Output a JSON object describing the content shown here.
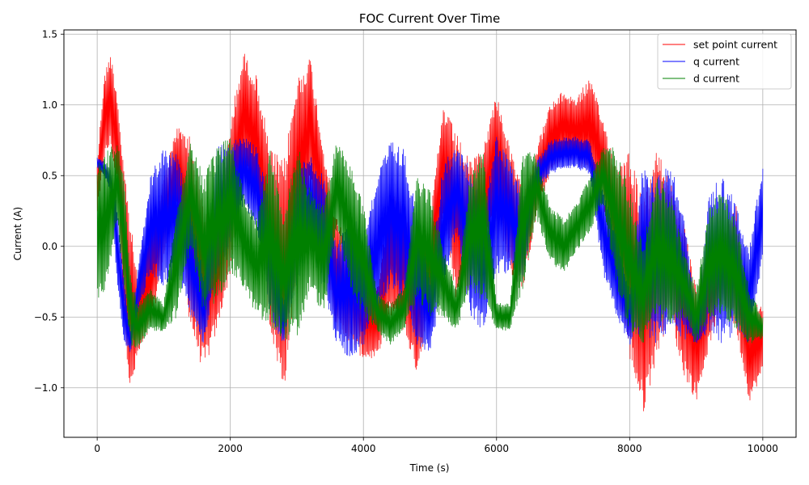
{
  "chart_data": {
    "type": "line",
    "title": "FOC Current Over Time",
    "xlabel": "Time (s)",
    "ylabel": "Current (A)",
    "xlim": [
      -500,
      10500
    ],
    "ylim": [
      -1.35,
      1.53
    ],
    "xticks": [
      0,
      2000,
      4000,
      6000,
      8000,
      10000
    ],
    "xtick_labels": [
      "0",
      "2000",
      "4000",
      "6000",
      "8000",
      "10000"
    ],
    "yticks": [
      -1.0,
      -0.5,
      0.0,
      0.5,
      1.0,
      1.5
    ],
    "ytick_labels": [
      "−1.0",
      "−0.5",
      "0.0",
      "0.5",
      "1.0",
      "1.5"
    ],
    "grid": true,
    "legend_position": "upper-right",
    "series": [
      {
        "name": "set point current",
        "color": "#ff0000",
        "envelope": {
          "x": [
            0,
            100,
            200,
            300,
            400,
            500,
            600,
            800,
            1000,
            1200,
            1400,
            1600,
            1800,
            2000,
            2200,
            2400,
            2600,
            2800,
            3000,
            3200,
            3400,
            3600,
            3800,
            4000,
            4200,
            4400,
            4600,
            4800,
            5000,
            5200,
            5400,
            5600,
            5800,
            6000,
            6200,
            6400,
            6600,
            6800,
            7000,
            7200,
            7400,
            7600,
            7800,
            8000,
            8200,
            8400,
            8600,
            8800,
            9000,
            9200,
            9400,
            9600,
            9800,
            10000
          ],
          "max": [
            0.6,
            1.2,
            1.38,
            1.1,
            0.6,
            0.2,
            -0.2,
            0.1,
            0.5,
            0.85,
            0.8,
            0.3,
            0.2,
            0.9,
            1.38,
            1.2,
            0.7,
            0.6,
            1.2,
            1.35,
            0.7,
            0.2,
            0.0,
            -0.2,
            -0.3,
            0.4,
            0.3,
            0.0,
            0.2,
            1.0,
            0.8,
            0.6,
            0.7,
            1.1,
            0.7,
            0.4,
            0.7,
            1.0,
            1.1,
            1.05,
            1.2,
            0.9,
            0.6,
            0.7,
            0.3,
            0.7,
            0.5,
            0.2,
            -0.3,
            0.0,
            0.1,
            0.3,
            -0.4,
            -0.4
          ],
          "min": [
            0.2,
            0.6,
            0.7,
            0.4,
            -0.5,
            -1.1,
            -0.8,
            -0.6,
            -0.1,
            0.3,
            -0.6,
            -0.9,
            -0.6,
            -0.2,
            0.5,
            0.3,
            -0.6,
            -1.05,
            -0.2,
            0.4,
            0.0,
            -0.6,
            -0.7,
            -0.8,
            -0.8,
            -0.5,
            -0.6,
            -0.9,
            -0.5,
            0.2,
            -0.4,
            -0.3,
            -0.1,
            0.3,
            -0.2,
            -0.3,
            0.2,
            0.5,
            0.6,
            0.6,
            0.5,
            0.3,
            -0.3,
            -0.8,
            -1.2,
            -0.8,
            -0.5,
            -0.9,
            -1.1,
            -0.7,
            -0.4,
            -0.6,
            -1.1,
            -0.9
          ]
        }
      },
      {
        "name": "q current",
        "color": "#0000ff",
        "envelope": {
          "x": [
            0,
            100,
            200,
            300,
            400,
            500,
            600,
            800,
            1000,
            1200,
            1400,
            1600,
            1800,
            2000,
            2200,
            2400,
            2600,
            2800,
            3000,
            3200,
            3400,
            3600,
            3800,
            4000,
            4200,
            4400,
            4600,
            4800,
            5000,
            5200,
            5400,
            5600,
            5800,
            6000,
            6200,
            6400,
            6600,
            6800,
            7000,
            7200,
            7400,
            7600,
            7800,
            8000,
            8200,
            8400,
            8600,
            8800,
            9000,
            9200,
            9400,
            9600,
            9800,
            10000
          ],
          "max": [
            0.63,
            0.6,
            0.55,
            0.3,
            -0.2,
            -0.6,
            -0.2,
            0.5,
            0.7,
            0.65,
            0.3,
            -0.2,
            0.7,
            0.75,
            0.78,
            0.7,
            0.3,
            -0.4,
            0.6,
            0.65,
            0.5,
            0.0,
            0.3,
            0.1,
            0.5,
            0.75,
            0.7,
            0.3,
            -0.2,
            0.6,
            0.7,
            0.6,
            0.3,
            0.78,
            0.6,
            0.4,
            0.6,
            0.75,
            0.78,
            0.78,
            0.75,
            0.4,
            0.1,
            -0.3,
            0.6,
            0.5,
            0.6,
            0.3,
            -0.5,
            0.4,
            0.5,
            0.3,
            0.0,
            0.6
          ],
          "min": [
            0.55,
            0.5,
            0.4,
            -0.3,
            -0.7,
            -0.75,
            -0.5,
            -0.2,
            -0.3,
            -0.2,
            -0.5,
            -0.7,
            -0.2,
            0.0,
            0.3,
            0.1,
            -0.5,
            -0.7,
            -0.3,
            0.0,
            -0.3,
            -0.7,
            -0.8,
            -0.7,
            -0.5,
            -0.3,
            -0.4,
            -0.7,
            -0.75,
            -0.3,
            0.1,
            -0.5,
            -0.6,
            -0.2,
            -0.2,
            -0.3,
            0.4,
            0.5,
            0.55,
            0.55,
            0.5,
            -0.2,
            -0.5,
            -0.7,
            -0.6,
            -0.7,
            -0.6,
            -0.65,
            -0.7,
            -0.6,
            -0.7,
            -0.6,
            -0.7,
            -0.1
          ]
        }
      },
      {
        "name": "d current",
        "color": "#008000",
        "envelope": {
          "x": [
            0,
            100,
            200,
            300,
            400,
            500,
            600,
            800,
            1000,
            1200,
            1400,
            1600,
            1800,
            2000,
            2200,
            2400,
            2600,
            2800,
            3000,
            3200,
            3400,
            3600,
            3800,
            4000,
            4200,
            4400,
            4600,
            4800,
            5000,
            5200,
            5400,
            5600,
            5800,
            6000,
            6200,
            6400,
            6600,
            6800,
            7000,
            7200,
            7400,
            7600,
            7800,
            8000,
            8200,
            8400,
            8600,
            8800,
            9000,
            9200,
            9400,
            9600,
            9800,
            10000
          ],
          "max": [
            0.6,
            0.65,
            0.7,
            0.75,
            0.5,
            -0.2,
            -0.4,
            -0.3,
            -0.4,
            0.3,
            0.75,
            0.5,
            0.7,
            0.8,
            0.4,
            0.2,
            0.7,
            0.2,
            0.75,
            0.4,
            0.3,
            0.75,
            0.6,
            0.3,
            -0.3,
            -0.4,
            -0.3,
            0.5,
            0.4,
            0.0,
            -0.3,
            0.5,
            0.75,
            -0.4,
            -0.4,
            0.7,
            0.65,
            0.3,
            0.2,
            0.3,
            0.5,
            0.7,
            0.7,
            0.4,
            0.0,
            0.5,
            0.4,
            0.0,
            -0.3,
            0.3,
            0.4,
            0.2,
            -0.3,
            -0.5
          ],
          "min": [
            -0.4,
            -0.4,
            -0.1,
            0.2,
            -0.3,
            -0.7,
            -0.75,
            -0.6,
            -0.6,
            -0.5,
            0.0,
            -0.5,
            -0.4,
            -0.2,
            -0.3,
            -0.5,
            -0.6,
            -0.65,
            -0.7,
            -0.3,
            -0.5,
            0.1,
            -0.3,
            -0.5,
            -0.6,
            -0.7,
            -0.6,
            -0.4,
            -0.5,
            -0.5,
            -0.6,
            -0.3,
            -0.4,
            -0.6,
            -0.6,
            -0.3,
            0.2,
            -0.1,
            -0.2,
            -0.05,
            0.1,
            0.3,
            -0.3,
            -0.6,
            -0.7,
            -0.5,
            -0.6,
            -0.5,
            -0.7,
            -0.5,
            -0.5,
            -0.6,
            -0.7,
            -0.65
          ]
        }
      }
    ]
  }
}
